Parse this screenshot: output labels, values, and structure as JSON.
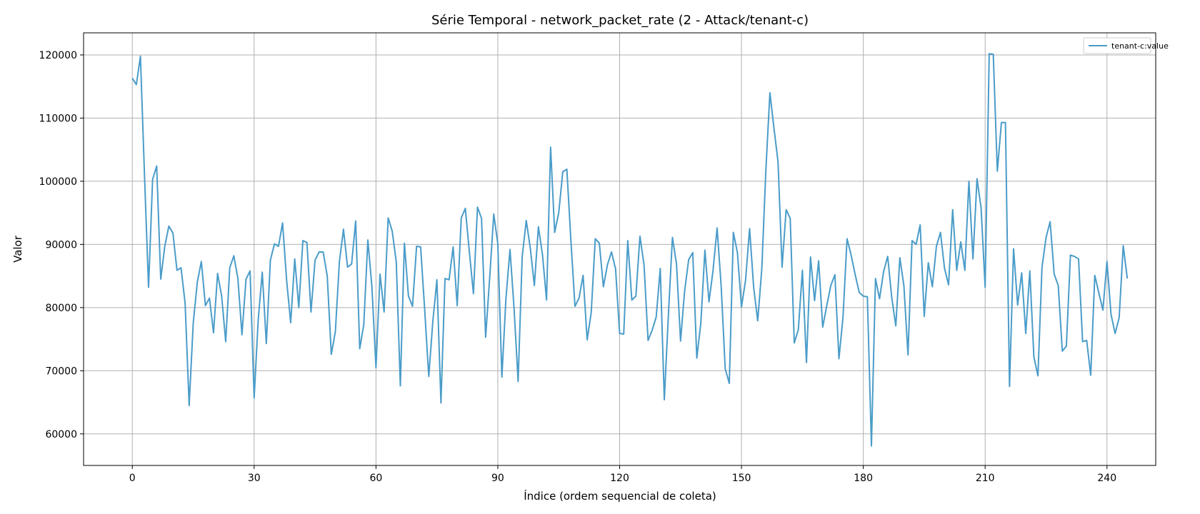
{
  "chart_data": {
    "type": "line",
    "title": "Série Temporal - network_packet_rate (2 - Attack/tenant-c)",
    "xlabel": "Índice (ordem sequencial de coleta)",
    "ylabel": "Valor",
    "xlim": [
      -12,
      252
    ],
    "ylim": [
      55000,
      123500
    ],
    "xticks": [
      0,
      30,
      60,
      90,
      120,
      150,
      180,
      210,
      240
    ],
    "yticks": [
      60000,
      70000,
      80000,
      90000,
      100000,
      110000,
      120000
    ],
    "grid": true,
    "legend_position": "top-right",
    "series": [
      {
        "name": "tenant-c:value",
        "color": "#4a9cc9",
        "values": [
          116300,
          115300,
          119800,
          101000,
          83200,
          100300,
          102400,
          84500,
          89700,
          92900,
          91800,
          85900,
          86300,
          80700,
          64500,
          77500,
          84000,
          87300,
          80300,
          81500,
          76000,
          85400,
          81800,
          74600,
          86300,
          88200,
          84600,
          75700,
          84500,
          85800,
          65700,
          78000,
          85600,
          74300,
          87500,
          90100,
          89700,
          93400,
          84300,
          77600,
          87700,
          80000,
          90600,
          90300,
          79300,
          87500,
          88800,
          88800,
          85000,
          72600,
          76200,
          87300,
          92400,
          86400,
          86900,
          93700,
          73500,
          77300,
          90700,
          83300,
          70500,
          85300,
          79300,
          94200,
          92100,
          87200,
          67600,
          90200,
          81800,
          80200,
          89700,
          89600,
          79600,
          69100,
          77800,
          84400,
          64900,
          84600,
          84400,
          89600,
          80300,
          94200,
          95700,
          88800,
          82200,
          95900,
          94100,
          75300,
          84700,
          94800,
          90100,
          69000,
          81400,
          89200,
          79900,
          68300,
          88000,
          93800,
          89400,
          83500,
          92800,
          88400,
          81200,
          105400,
          91900,
          95000,
          101500,
          101900,
          90600,
          80200,
          81500,
          85100,
          74900,
          79200,
          90900,
          90200,
          83300,
          86800,
          88800,
          86100,
          75900,
          75800,
          90600,
          81200,
          81800,
          91300,
          86800,
          74800,
          76400,
          78500,
          86200,
          65400,
          78800,
          91100,
          86900,
          74700,
          82600,
          87600,
          88700,
          72000,
          77600,
          89100,
          80900,
          85900,
          92600,
          83400,
          70300,
          68000,
          91900,
          88700,
          80100,
          84300,
          92500,
          83200,
          77900,
          86100,
          101700,
          114000,
          108400,
          103100,
          86400,
          95500,
          94100,
          74400,
          76500,
          85900,
          71300,
          88000,
          81100,
          87400,
          76900,
          80300,
          83500,
          85200,
          71900,
          78500,
          90900,
          88300,
          85200,
          82400,
          81800,
          81700,
          58100,
          84600,
          81400,
          85700,
          88100,
          81600,
          77100,
          87900,
          83400,
          72500,
          90600,
          90000,
          93100,
          78600,
          87100,
          83300,
          89700,
          91900,
          86200,
          83600,
          95500,
          85900,
          90400,
          85900,
          100000,
          87700,
          100400,
          95800,
          83200,
          120200,
          120100,
          101600,
          109300,
          109300,
          67500,
          89300,
          80400,
          85500,
          75900,
          85800,
          72200,
          69200,
          86400,
          91100,
          93600,
          85300,
          83500,
          73100,
          73900,
          88300,
          88100,
          87700,
          74600,
          74800,
          69300,
          85100,
          82300,
          79600,
          87300,
          78900,
          75900,
          78400,
          89800,
          84600
        ]
      }
    ]
  }
}
